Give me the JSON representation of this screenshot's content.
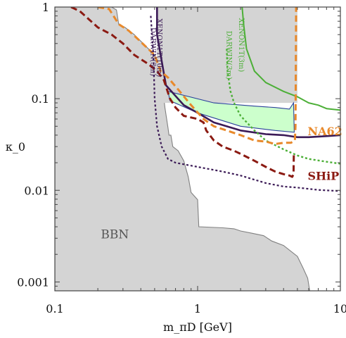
{
  "chart_data": {
    "type": "line",
    "xlabel": "m_πD [GeV]",
    "ylabel": "κ_0",
    "xscale": "log",
    "yscale": "log",
    "xlim": [
      0.1,
      10
    ],
    "ylim": [
      0.0008,
      1
    ],
    "x_ticks": [
      {
        "value": 0.1,
        "label": "0.1"
      },
      {
        "value": 1,
        "label": "1"
      },
      {
        "value": 10,
        "label": "10"
      }
    ],
    "y_ticks": [
      {
        "value": 0.001,
        "label": "0.001"
      },
      {
        "value": 0.01,
        "label": "0.01"
      },
      {
        "value": 0.1,
        "label": "0.1"
      },
      {
        "value": 1,
        "label": "1"
      }
    ],
    "regions": [
      {
        "id": "bbn",
        "name": "BBN",
        "fill": "#d4d4d4",
        "stroke": "#808080",
        "label_at": [
          0.21,
          0.003
        ],
        "points": [
          [
            0.1,
            1
          ],
          [
            0.25,
            1
          ],
          [
            0.27,
            0.93
          ],
          [
            0.28,
            0.65
          ],
          [
            0.31,
            0.6
          ],
          [
            0.36,
            0.5
          ],
          [
            0.47,
            0.33
          ],
          [
            0.5,
            0.3
          ],
          [
            0.52,
            0.25
          ],
          [
            0.55,
            0.18
          ],
          [
            0.58,
            0.1
          ],
          [
            0.59,
            0.08
          ],
          [
            0.62,
            0.048
          ],
          [
            0.63,
            0.04
          ],
          [
            0.65,
            0.04
          ],
          [
            0.67,
            0.03
          ],
          [
            0.73,
            0.027
          ],
          [
            0.8,
            0.021
          ],
          [
            0.84,
            0.016
          ],
          [
            0.86,
            0.014
          ],
          [
            0.9,
            0.0095
          ],
          [
            1.0,
            0.0079
          ],
          [
            1.02,
            0.004
          ],
          [
            1.5,
            0.0039
          ],
          [
            1.8,
            0.0038
          ],
          [
            2.0,
            0.0036
          ],
          [
            2.4,
            0.0034
          ],
          [
            2.9,
            0.0032
          ],
          [
            3.3,
            0.0028
          ],
          [
            4.0,
            0.0025
          ],
          [
            5.0,
            0.0019
          ],
          [
            5.5,
            0.0014
          ],
          [
            5.9,
            0.0011
          ],
          [
            6.1,
            0.0008
          ],
          [
            0.1,
            0.0008
          ]
        ]
      },
      {
        "id": "xenon-top-band",
        "fill": "#d4d4d4",
        "stroke": "none",
        "points": [
          [
            0.52,
            1
          ],
          [
            5.0,
            1
          ],
          [
            5.0,
            0.09
          ],
          [
            0.52,
            0.09
          ]
        ]
      },
      {
        "id": "green-band",
        "fill": "#ccffcc",
        "stroke": "#2a3f9a",
        "points": [
          [
            0.62,
            0.12
          ],
          [
            1.3,
            0.09
          ],
          [
            2.5,
            0.083
          ],
          [
            3.5,
            0.08
          ],
          [
            4.4,
            0.077
          ],
          [
            4.7,
            0.09
          ],
          [
            4.75,
            0.043
          ],
          [
            3.5,
            0.045
          ],
          [
            2.0,
            0.05
          ],
          [
            1.0,
            0.07
          ],
          [
            0.64,
            0.095
          ]
        ]
      }
    ],
    "series": [
      {
        "name": "XENON1T(10m)",
        "color": "#3b1a56",
        "style": "solid",
        "width": 2.6,
        "label_at": [
          0.52,
          0.75
        ],
        "points": [
          [
            0.52,
            1
          ],
          [
            0.52,
            0.5
          ],
          [
            0.6,
            0.14
          ],
          [
            0.8,
            0.085
          ],
          [
            1.0,
            0.07
          ],
          [
            1.3,
            0.055
          ],
          [
            2.0,
            0.045
          ],
          [
            3.0,
            0.041
          ],
          [
            4.0,
            0.04
          ],
          [
            5.0,
            0.038
          ],
          [
            6.0,
            0.038
          ],
          [
            8.0,
            0.039
          ],
          [
            10,
            0.04
          ]
        ]
      },
      {
        "name": "DARWIN(3m)",
        "color": "#3b1a56",
        "style": "dotted",
        "width": 2.2,
        "label_at": [
          0.47,
          0.6
        ],
        "points": [
          [
            0.47,
            0.8
          ],
          [
            0.49,
            0.3
          ],
          [
            0.5,
            0.1
          ],
          [
            0.52,
            0.05
          ],
          [
            0.56,
            0.03
          ],
          [
            0.62,
            0.022
          ],
          [
            0.7,
            0.02
          ],
          [
            1.0,
            0.018
          ],
          [
            1.5,
            0.016
          ],
          [
            2.0,
            0.0145
          ],
          [
            3.0,
            0.012
          ],
          [
            4.0,
            0.011
          ],
          [
            5.0,
            0.0107
          ],
          [
            7.0,
            0.0101
          ],
          [
            10,
            0.0098
          ]
        ]
      },
      {
        "name": "XENON1T(3m)",
        "color": "#4caf37",
        "style": "solid",
        "width": 2.0,
        "label_at": [
          1.95,
          0.76
        ],
        "points": [
          [
            2.05,
            1
          ],
          [
            2.1,
            0.65
          ],
          [
            2.2,
            0.35
          ],
          [
            2.5,
            0.2
          ],
          [
            3.0,
            0.15
          ],
          [
            4.0,
            0.12
          ],
          [
            5.0,
            0.105
          ],
          [
            6.0,
            0.09
          ],
          [
            7.0,
            0.085
          ],
          [
            8.0,
            0.078
          ],
          [
            10,
            0.075
          ]
        ]
      },
      {
        "name": "DARWIN(3m)",
        "color": "#4caf37",
        "style": "dotted",
        "width": 2.4,
        "label_at": [
          1.6,
          0.55
        ],
        "points": [
          [
            1.6,
            0.35
          ],
          [
            1.62,
            0.2
          ],
          [
            1.7,
            0.12
          ],
          [
            1.8,
            0.09
          ],
          [
            2.0,
            0.065
          ],
          [
            2.5,
            0.045
          ],
          [
            3.0,
            0.035
          ],
          [
            4.0,
            0.028
          ],
          [
            5.0,
            0.024
          ],
          [
            6.0,
            0.022
          ],
          [
            8.0,
            0.0205
          ],
          [
            10,
            0.0195
          ]
        ]
      },
      {
        "name": "NA62",
        "color": "#e8892b",
        "style": "dashed",
        "width": 3.0,
        "label_at": [
          5.9,
          0.04
        ],
        "points": [
          [
            0.2,
            1
          ],
          [
            0.24,
            0.95
          ],
          [
            0.28,
            0.65
          ],
          [
            0.33,
            0.55
          ],
          [
            0.38,
            0.45
          ],
          [
            0.45,
            0.35
          ],
          [
            0.5,
            0.3
          ],
          [
            0.55,
            0.2
          ],
          [
            0.62,
            0.17
          ],
          [
            0.75,
            0.12
          ],
          [
            0.9,
            0.085
          ],
          [
            1.1,
            0.06
          ],
          [
            1.3,
            0.05
          ],
          [
            1.6,
            0.045
          ],
          [
            2.0,
            0.04
          ],
          [
            2.5,
            0.035
          ],
          [
            3.0,
            0.034
          ],
          [
            3.5,
            0.032
          ],
          [
            4.0,
            0.033
          ],
          [
            4.5,
            0.033
          ],
          [
            4.8,
            0.035
          ],
          [
            4.85,
            0.05
          ],
          [
            4.9,
            1
          ]
        ]
      },
      {
        "name": "SHiP",
        "color": "#8b1a12",
        "style": "dashed",
        "width": 3.0,
        "label_at": [
          5.9,
          0.013
        ],
        "points": [
          [
            0.13,
            1
          ],
          [
            0.15,
            0.9
          ],
          [
            0.2,
            0.6
          ],
          [
            0.25,
            0.5
          ],
          [
            0.3,
            0.4
          ],
          [
            0.36,
            0.3
          ],
          [
            0.45,
            0.24
          ],
          [
            0.52,
            0.2
          ],
          [
            0.58,
            0.16
          ],
          [
            0.64,
            0.1
          ],
          [
            0.7,
            0.08
          ],
          [
            0.8,
            0.065
          ],
          [
            1.0,
            0.06
          ],
          [
            1.1,
            0.055
          ],
          [
            1.15,
            0.045
          ],
          [
            1.3,
            0.035
          ],
          [
            1.5,
            0.03
          ],
          [
            1.8,
            0.027
          ],
          [
            2.0,
            0.025
          ],
          [
            2.5,
            0.021
          ],
          [
            3.0,
            0.018
          ],
          [
            3.5,
            0.016
          ],
          [
            4.0,
            0.015
          ],
          [
            4.4,
            0.0145
          ],
          [
            4.6,
            0.014
          ],
          [
            4.7,
            0.015
          ],
          [
            4.72,
            0.025
          ]
        ]
      }
    ]
  }
}
